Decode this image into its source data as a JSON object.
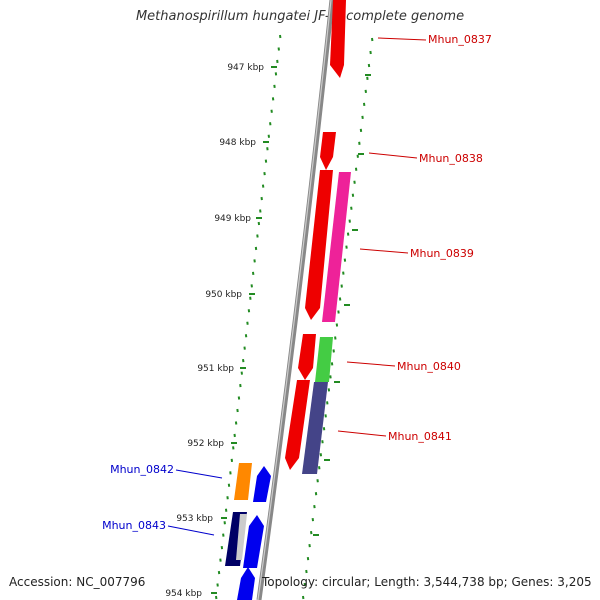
{
  "title": "Methanospirillum hungatei JF-1, complete genome",
  "footer": {
    "accession": "Accession: NC_007796",
    "summary": "Topology: circular; Length: 3,544,738 bp; Genes: 3,205"
  },
  "ticks": [
    {
      "label": "947 kbp"
    },
    {
      "label": "948 kbp"
    },
    {
      "label": "949 kbp"
    },
    {
      "label": "950 kbp"
    },
    {
      "label": "951 kbp"
    },
    {
      "label": "952 kbp"
    },
    {
      "label": "953 kbp"
    },
    {
      "label": "954 kbp"
    }
  ],
  "genes": [
    {
      "label": "Mhun_0837",
      "color": "#cc0000"
    },
    {
      "label": "Mhun_0838",
      "color": "#cc0000"
    },
    {
      "label": "Mhun_0839",
      "color": "#cc0000"
    },
    {
      "label": "Mhun_0840",
      "color": "#cc0000"
    },
    {
      "label": "Mhun_0841",
      "color": "#cc0000"
    },
    {
      "label": "Mhun_0842",
      "color": "#0000cc"
    },
    {
      "label": "Mhun_0843",
      "color": "#0000cc"
    }
  ],
  "colors": {
    "backbone": "#888888",
    "tick": "#228b22",
    "red": "#ee0000",
    "pink": "#ee2299",
    "green": "#44cc44",
    "purple": "#444488",
    "orange": "#ff8800",
    "blue": "#0000ee",
    "navy": "#000066"
  }
}
